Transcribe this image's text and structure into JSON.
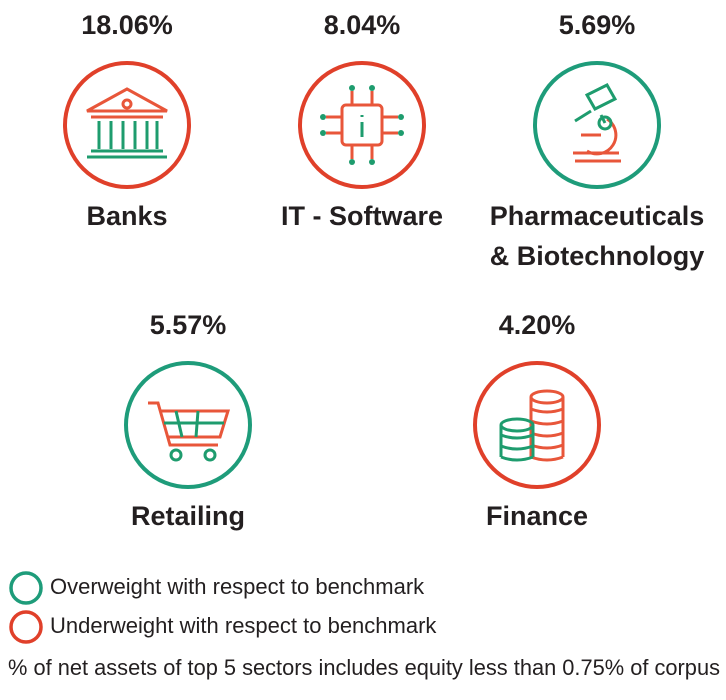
{
  "sectors": [
    {
      "percent": "18.06%",
      "label": [
        "Banks"
      ],
      "color": "#e0402a"
    },
    {
      "percent": "8.04%",
      "label": [
        "IT - Software"
      ],
      "color": "#e0402a"
    },
    {
      "percent": "5.69%",
      "label": [
        "Pharmaceuticals",
        "& Biotechnology"
      ],
      "color": "#1e9c7a"
    },
    {
      "percent": "5.57%",
      "label": [
        "Retailing"
      ],
      "color": "#1e9c7a"
    },
    {
      "percent": "4.20%",
      "label": [
        "Finance"
      ],
      "color": "#e0402a"
    }
  ],
  "legend": [
    {
      "text": "Overweight with respect to benchmark",
      "color": "#1e9c7a"
    },
    {
      "text": "Underweight with respect to benchmark",
      "color": "#e0402a"
    }
  ],
  "footnote": "% of net assets of top 5 sectors includes equity less than 0.75% of corpus"
}
